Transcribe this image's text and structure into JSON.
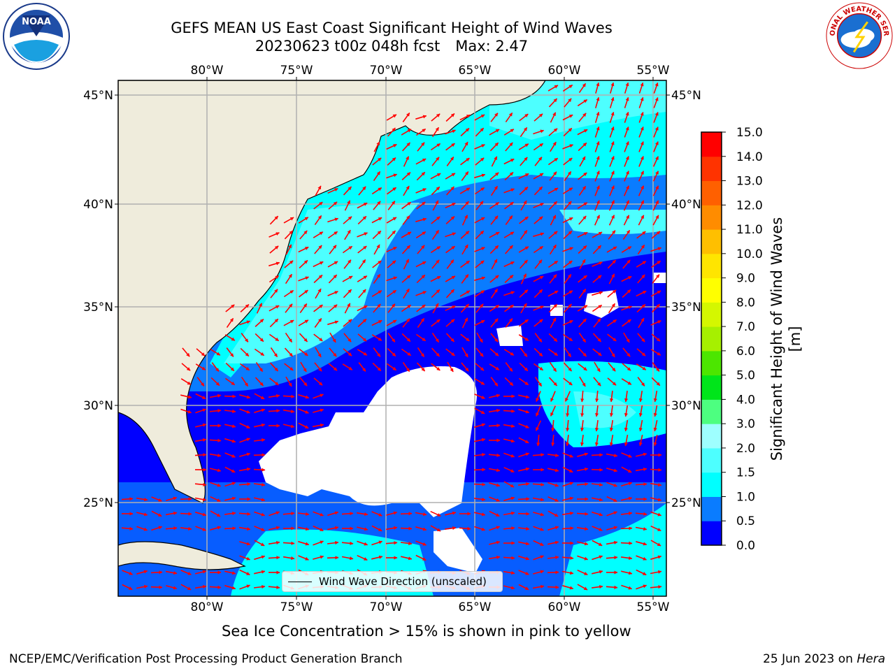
{
  "header": {
    "title_line1": "GEFS MEAN US East Coast Significant Height of Wind Waves",
    "title_line2_left": "20230623 t00z 048h fcst",
    "title_line2_right": "Max: 2.47"
  },
  "logos": {
    "left": "NOAA",
    "right": "NATIONAL WEATHER SERVICE"
  },
  "map": {
    "lon_labels": [
      "80°W",
      "75°W",
      "70°W",
      "65°W",
      "60°W",
      "55°W"
    ],
    "lat_labels": [
      "45°N",
      "40°N",
      "35°N",
      "30°N",
      "25°N"
    ],
    "legend_label": "Wind Wave Direction (unscaled)",
    "arrow_color": "#ff0000",
    "land_color": "#efecdc"
  },
  "colorbar": {
    "label": "Significant Height of Wind Waves [m]",
    "ticks": [
      "0.0",
      "0.5",
      "1.0",
      "1.5",
      "2.0",
      "3.0",
      "4.0",
      "5.0",
      "6.0",
      "7.0",
      "8.0",
      "9.0",
      "10.0",
      "11.0",
      "12.0",
      "13.0",
      "14.0",
      "15.0"
    ],
    "colors": [
      "#0000ff",
      "#0a7cff",
      "#00ffff",
      "#4dffff",
      "#9effff",
      "#4dff80",
      "#00e51a",
      "#4ce600",
      "#a6f000",
      "#d4f700",
      "#ffff00",
      "#ffe500",
      "#ffbf00",
      "#ff8c00",
      "#ff6000",
      "#ff3300",
      "#ff0000"
    ]
  },
  "note": "Sea Ice Concentration > 15% is shown in pink to yellow",
  "footer": {
    "left": "NCEP/EMC/Verification Post Processing Product Generation Branch",
    "right_date": "25 Jun 2023 on",
    "right_host": "Hera"
  }
}
